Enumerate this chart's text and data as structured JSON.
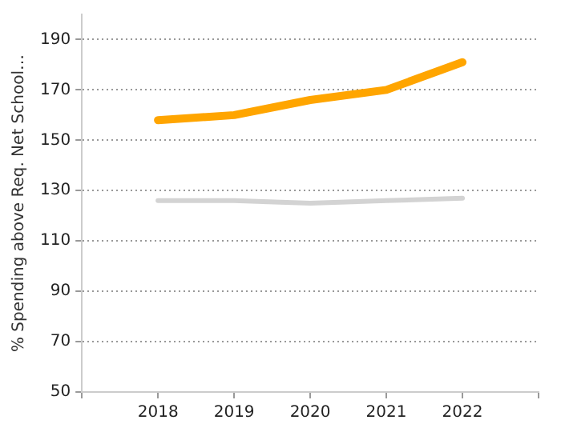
{
  "chart_data": {
    "type": "line",
    "ylabel": "% Spending above Req. Net School…",
    "x": [
      2018,
      2019,
      2020,
      2021,
      2022
    ],
    "xlim": [
      2017,
      2023
    ],
    "xticks": [
      {
        "value": 2017,
        "label": null
      },
      2018,
      2019,
      2020,
      2021,
      2022,
      {
        "value": 2023,
        "label": null
      }
    ],
    "ylim": [
      50,
      200
    ],
    "yticks": [
      50,
      70,
      90,
      110,
      130,
      150,
      170,
      190
    ],
    "grid": "y",
    "marker": "none",
    "line_style": "solid",
    "series": [
      {
        "color": "#ffa500",
        "values": [
          158,
          160,
          166,
          170,
          181
        ]
      },
      {
        "color": "#d3d3d3",
        "values": [
          126,
          126,
          125,
          126,
          127
        ]
      }
    ]
  }
}
